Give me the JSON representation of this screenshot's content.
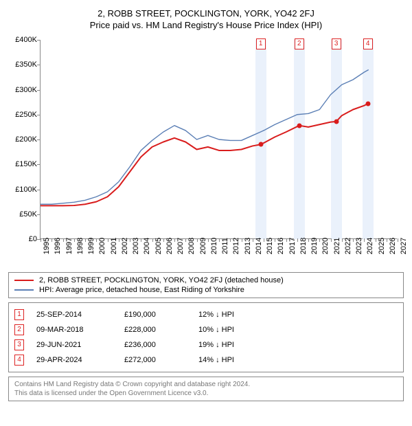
{
  "title": "2, ROBB STREET, POCKLINGTON, YORK, YO42 2FJ",
  "subtitle": "Price paid vs. HM Land Registry's House Price Index (HPI)",
  "chart": {
    "type": "line",
    "background_color": "#ffffff",
    "band_color": "#eaf1fb",
    "ylim": [
      0,
      400000
    ],
    "ytick_step": 50000,
    "yticks": [
      "£0",
      "£50K",
      "£100K",
      "£150K",
      "£200K",
      "£250K",
      "£300K",
      "£350K",
      "£400K"
    ],
    "xlim": [
      1995,
      2027
    ],
    "xticks": [
      1995,
      1996,
      1997,
      1998,
      1999,
      2000,
      2001,
      2002,
      2003,
      2004,
      2005,
      2006,
      2007,
      2008,
      2009,
      2010,
      2011,
      2012,
      2013,
      2014,
      2015,
      2016,
      2017,
      2018,
      2019,
      2020,
      2021,
      2022,
      2023,
      2024,
      2025,
      2026,
      2027
    ],
    "label_fontsize": 11,
    "series": [
      {
        "name": "price_paid",
        "label": "2, ROBB STREET, POCKLINGTON, YORK, YO42 2FJ (detached house)",
        "color": "#d91c1c",
        "line_width": 2,
        "data": [
          [
            1995,
            67000
          ],
          [
            1996,
            67000
          ],
          [
            1997,
            67000
          ],
          [
            1998,
            67500
          ],
          [
            1999,
            70000
          ],
          [
            2000,
            75000
          ],
          [
            2001,
            85000
          ],
          [
            2002,
            105000
          ],
          [
            2003,
            135000
          ],
          [
            2004,
            165000
          ],
          [
            2005,
            185000
          ],
          [
            2006,
            195000
          ],
          [
            2007,
            203000
          ],
          [
            2008,
            195000
          ],
          [
            2009,
            180000
          ],
          [
            2010,
            185000
          ],
          [
            2011,
            178000
          ],
          [
            2012,
            178000
          ],
          [
            2013,
            180000
          ],
          [
            2014,
            187000
          ],
          [
            2014.73,
            190000
          ],
          [
            2015,
            193000
          ],
          [
            2016,
            205000
          ],
          [
            2017,
            215000
          ],
          [
            2018.19,
            228000
          ],
          [
            2019,
            225000
          ],
          [
            2020,
            230000
          ],
          [
            2021,
            235000
          ],
          [
            2021.5,
            236000
          ],
          [
            2022,
            248000
          ],
          [
            2023,
            260000
          ],
          [
            2024,
            268000
          ],
          [
            2024.33,
            272000
          ]
        ]
      },
      {
        "name": "hpi",
        "label": "HPI: Average price, detached house, East Riding of Yorkshire",
        "color": "#5b7fb5",
        "line_width": 1.4,
        "data": [
          [
            1995,
            70000
          ],
          [
            1996,
            70000
          ],
          [
            1997,
            72000
          ],
          [
            1998,
            74000
          ],
          [
            1999,
            78000
          ],
          [
            2000,
            85000
          ],
          [
            2001,
            95000
          ],
          [
            2002,
            115000
          ],
          [
            2003,
            145000
          ],
          [
            2004,
            178000
          ],
          [
            2005,
            198000
          ],
          [
            2006,
            215000
          ],
          [
            2007,
            228000
          ],
          [
            2008,
            218000
          ],
          [
            2009,
            200000
          ],
          [
            2010,
            208000
          ],
          [
            2011,
            200000
          ],
          [
            2012,
            198000
          ],
          [
            2013,
            198000
          ],
          [
            2014,
            208000
          ],
          [
            2015,
            218000
          ],
          [
            2016,
            230000
          ],
          [
            2017,
            240000
          ],
          [
            2018,
            250000
          ],
          [
            2019,
            252000
          ],
          [
            2020,
            260000
          ],
          [
            2021,
            290000
          ],
          [
            2022,
            310000
          ],
          [
            2023,
            320000
          ],
          [
            2024,
            335000
          ],
          [
            2024.4,
            340000
          ]
        ]
      }
    ],
    "markers": [
      {
        "n": "1",
        "x": 2014.73,
        "y": 190000,
        "color": "#d91c1c"
      },
      {
        "n": "2",
        "x": 2018.19,
        "y": 228000,
        "color": "#d91c1c"
      },
      {
        "n": "3",
        "x": 2021.5,
        "y": 236000,
        "color": "#d91c1c"
      },
      {
        "n": "4",
        "x": 2024.33,
        "y": 272000,
        "color": "#d91c1c"
      }
    ]
  },
  "legend": {
    "rows": [
      {
        "color": "#d91c1c",
        "width": 2,
        "label": "2, ROBB STREET, POCKLINGTON, YORK, YO42 2FJ (detached house)"
      },
      {
        "color": "#5b7fb5",
        "width": 1.4,
        "label": "HPI: Average price, detached house, East Riding of Yorkshire"
      }
    ]
  },
  "events": [
    {
      "n": "1",
      "date": "25-SEP-2014",
      "price": "£190,000",
      "pct": "12% ↓ HPI"
    },
    {
      "n": "2",
      "date": "09-MAR-2018",
      "price": "£228,000",
      "pct": "10% ↓ HPI"
    },
    {
      "n": "3",
      "date": "29-JUN-2021",
      "price": "£236,000",
      "pct": "19% ↓ HPI"
    },
    {
      "n": "4",
      "date": "29-APR-2024",
      "price": "£272,000",
      "pct": "14% ↓ HPI"
    }
  ],
  "footer": {
    "line1": "Contains HM Land Registry data © Crown copyright and database right 2024.",
    "line2": "This data is licensed under the Open Government Licence v3.0."
  }
}
